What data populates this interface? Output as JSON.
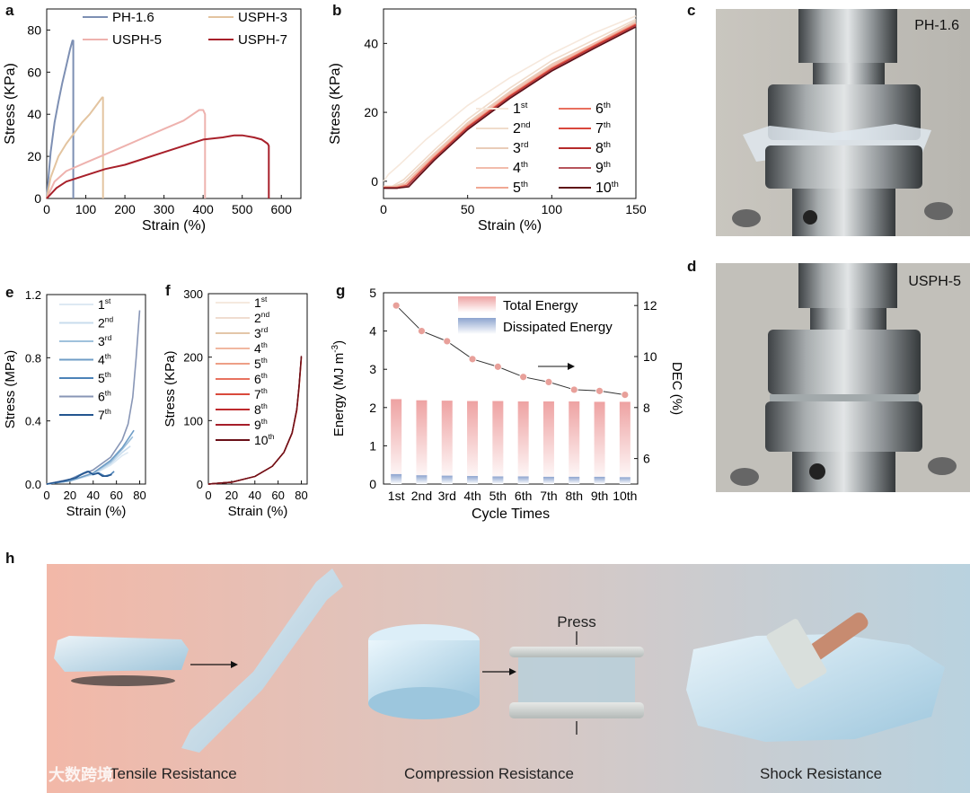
{
  "panels": {
    "a": "a",
    "b": "b",
    "c": "c",
    "d": "d",
    "e": "e",
    "f": "f",
    "g": "g",
    "h": "h"
  },
  "chart_data": [
    {
      "id": "a",
      "type": "line",
      "xlabel": "Strain (%)",
      "ylabel": "Stress (KPa)",
      "xlim": [
        0,
        650
      ],
      "ylim": [
        0,
        90
      ],
      "xticks": [
        0,
        100,
        200,
        300,
        400,
        500,
        600
      ],
      "yticks": [
        0,
        20,
        40,
        60,
        80
      ],
      "legend": "top",
      "series": [
        {
          "name": "PH-1.6",
          "color": "#7d8fb3",
          "x": [
            0,
            10,
            20,
            30,
            40,
            50,
            60,
            66,
            68,
            68
          ],
          "y": [
            0,
            22,
            36,
            46,
            55,
            63,
            71,
            75,
            75,
            0
          ]
        },
        {
          "name": "USPH-3",
          "color": "#e3c4a0",
          "x": [
            0,
            10,
            30,
            50,
            70,
            90,
            110,
            130,
            142,
            144,
            144
          ],
          "y": [
            0,
            10,
            20,
            26,
            31,
            36,
            40,
            45,
            48,
            48,
            0
          ]
        },
        {
          "name": "USPH-5",
          "color": "#eeb2ae",
          "x": [
            0,
            20,
            50,
            100,
            150,
            200,
            250,
            300,
            350,
            390,
            400,
            405,
            405
          ],
          "y": [
            0,
            8,
            13,
            17,
            21,
            25,
            29,
            33,
            37,
            42,
            42,
            40,
            0
          ]
        },
        {
          "name": "USPH-7",
          "color": "#a8202a",
          "x": [
            0,
            25,
            50,
            100,
            150,
            200,
            250,
            300,
            350,
            400,
            450,
            480,
            500,
            530,
            550,
            565,
            568,
            568
          ],
          "y": [
            0,
            5,
            8,
            11,
            14,
            16,
            19,
            22,
            25,
            28,
            29,
            30,
            30,
            29,
            28,
            26,
            25,
            0
          ]
        }
      ]
    },
    {
      "id": "b",
      "type": "line",
      "xlabel": "Strain (%)",
      "ylabel": "Stress (KPa)",
      "xlim": [
        0,
        150
      ],
      "ylim": [
        -5,
        50
      ],
      "xticks": [
        0,
        50,
        100,
        150
      ],
      "yticks": [
        0,
        20,
        40
      ],
      "legend": "lower-right",
      "series": [
        {
          "name": "1",
          "sup": "st",
          "color": "#f6e8dc",
          "x": [
            0,
            3,
            10,
            25,
            50,
            75,
            100,
            125,
            150
          ],
          "y": [
            0,
            2,
            5,
            12,
            22,
            30,
            37,
            43,
            48
          ]
        },
        {
          "name": "2",
          "sup": "nd",
          "color": "#f0dccc",
          "x": [
            0,
            5,
            12,
            30,
            50,
            75,
            100,
            125,
            150
          ],
          "y": [
            -1.5,
            -1.5,
            0.5,
            9,
            18,
            27,
            35,
            41,
            47
          ]
        },
        {
          "name": "3",
          "sup": "rd",
          "color": "#e9ccb8",
          "x": [
            0,
            6,
            12,
            30,
            50,
            75,
            100,
            125,
            150
          ],
          "y": [
            -1.5,
            -1.5,
            -0.5,
            8,
            17,
            26,
            34,
            40,
            46.5
          ]
        },
        {
          "name": "4",
          "sup": "th",
          "color": "#f2bcac",
          "x": [
            0,
            7,
            13,
            30,
            50,
            75,
            100,
            125,
            150
          ],
          "y": [
            -1.7,
            -1.7,
            -0.8,
            7.5,
            16.5,
            25.5,
            33.5,
            40,
            46
          ]
        },
        {
          "name": "5",
          "sup": "th",
          "color": "#f0a894",
          "x": [
            0,
            7,
            13,
            30,
            50,
            75,
            100,
            125,
            150
          ],
          "y": [
            -1.8,
            -1.8,
            -1,
            7,
            16,
            25,
            33,
            39.5,
            45.8
          ]
        },
        {
          "name": "6",
          "sup": "th",
          "color": "#e8705e",
          "x": [
            0,
            8,
            14,
            30,
            50,
            75,
            100,
            125,
            150
          ],
          "y": [
            -1.8,
            -1.8,
            -1.2,
            6.8,
            15.8,
            24.8,
            32.8,
            39.3,
            45.6
          ]
        },
        {
          "name": "7",
          "sup": "th",
          "color": "#d9473c",
          "x": [
            0,
            8,
            14,
            30,
            50,
            75,
            100,
            125,
            150
          ],
          "y": [
            -1.9,
            -1.9,
            -1.3,
            6.6,
            15.6,
            24.6,
            32.6,
            39.1,
            45.4
          ]
        },
        {
          "name": "8",
          "sup": "th",
          "color": "#b52a2a",
          "x": [
            0,
            8,
            14,
            30,
            50,
            75,
            100,
            125,
            150
          ],
          "y": [
            -2,
            -2,
            -1.4,
            6.4,
            15.4,
            24.4,
            32.4,
            38.9,
            45.2
          ]
        },
        {
          "name": "9",
          "sup": "th",
          "color": "#b6545c",
          "x": [
            0,
            8,
            14,
            30,
            50,
            75,
            100,
            125,
            150
          ],
          "y": [
            -2,
            -2,
            -1.5,
            6.2,
            15.2,
            24.2,
            32.2,
            38.7,
            45
          ]
        },
        {
          "name": "10",
          "sup": "th",
          "color": "#5e0f16",
          "x": [
            0,
            8,
            15,
            30,
            50,
            75,
            100,
            125,
            150
          ],
          "y": [
            -2,
            -2,
            -1.6,
            6,
            15,
            24,
            32,
            38.5,
            44.8
          ]
        }
      ]
    },
    {
      "id": "e",
      "type": "line",
      "xlabel": "Strain (%)",
      "ylabel": "Stress (MPa)",
      "xlim": [
        0,
        85
      ],
      "ylim": [
        0,
        1.2
      ],
      "xticks": [
        0,
        20,
        40,
        60,
        80
      ],
      "yticks": [
        0.0,
        0.4,
        0.8,
        1.2
      ],
      "ytick_labels": [
        "0.0",
        "0.4",
        "0.8",
        "1.2"
      ],
      "legend": "top-right",
      "series": [
        {
          "name": "1",
          "sup": "st",
          "color": "#dde9f3",
          "x": [
            0,
            20,
            40,
            55,
            65,
            70
          ],
          "y": [
            0,
            0.02,
            0.06,
            0.12,
            0.18,
            0.2
          ]
        },
        {
          "name": "2",
          "sup": "nd",
          "color": "#c8dced",
          "x": [
            0,
            20,
            40,
            55,
            65,
            72
          ],
          "y": [
            0,
            0.02,
            0.06,
            0.13,
            0.2,
            0.24
          ]
        },
        {
          "name": "3",
          "sup": "rd",
          "color": "#9fc1dc",
          "x": [
            0,
            20,
            40,
            55,
            65,
            74
          ],
          "y": [
            0,
            0.02,
            0.07,
            0.14,
            0.22,
            0.3
          ]
        },
        {
          "name": "4",
          "sup": "th",
          "color": "#6f9dc6",
          "x": [
            0,
            20,
            40,
            55,
            65,
            75
          ],
          "y": [
            0,
            0.02,
            0.07,
            0.15,
            0.23,
            0.34
          ]
        },
        {
          "name": "5",
          "sup": "th",
          "color": "#4c82b8",
          "x": [
            0,
            20,
            35,
            40,
            45,
            50,
            55,
            58
          ],
          "y": [
            0,
            0.03,
            0.08,
            0.06,
            0.07,
            0.05,
            0.06,
            0.08
          ]
        },
        {
          "name": "6",
          "sup": "th",
          "color": "#8896b6",
          "x": [
            0,
            20,
            40,
            55,
            65,
            70,
            74,
            77,
            80
          ],
          "y": [
            0,
            0.03,
            0.09,
            0.17,
            0.28,
            0.38,
            0.55,
            0.8,
            1.1
          ]
        },
        {
          "name": "7",
          "sup": "th",
          "color": "#23558f",
          "x": [
            0,
            15,
            25,
            32,
            36,
            40,
            44,
            48,
            52,
            56
          ],
          "y": [
            0,
            0.02,
            0.04,
            0.07,
            0.08,
            0.06,
            0.07,
            0.05,
            0.05,
            0.06
          ]
        }
      ]
    },
    {
      "id": "f",
      "type": "line",
      "xlabel": "Strain (%)",
      "ylabel": "Stress (KPa)",
      "xlim": [
        0,
        85
      ],
      "ylim": [
        0,
        300
      ],
      "xticks": [
        0,
        20,
        40,
        60,
        80
      ],
      "yticks": [
        0,
        100,
        200,
        300
      ],
      "legend": "top-right",
      "series": [
        {
          "name": "1",
          "sup": "st",
          "color": "#f5e9df",
          "x": [
            0,
            20,
            40,
            55,
            65,
            72,
            76,
            78,
            80
          ],
          "y": [
            0,
            3,
            12,
            28,
            50,
            80,
            115,
            150,
            195
          ]
        },
        {
          "name": "2",
          "sup": "nd",
          "color": "#f0ddd0",
          "x": [
            0,
            20,
            40,
            55,
            65,
            72,
            76,
            78,
            80
          ],
          "y": [
            0,
            3,
            12,
            28,
            50,
            80,
            115,
            150,
            196
          ]
        },
        {
          "name": "3",
          "sup": "rd",
          "color": "#e3c6a8",
          "x": [
            0,
            20,
            40,
            55,
            65,
            72,
            76,
            78,
            80
          ],
          "y": [
            0,
            3,
            12,
            28,
            50,
            80,
            115,
            150,
            197
          ]
        },
        {
          "name": "4",
          "sup": "th",
          "color": "#f1b7a0",
          "x": [
            0,
            20,
            40,
            55,
            65,
            72,
            76,
            78,
            80
          ],
          "y": [
            0,
            3,
            12,
            28,
            50,
            80,
            115,
            150,
            198
          ]
        },
        {
          "name": "5",
          "sup": "th",
          "color": "#ee9f86",
          "x": [
            0,
            20,
            40,
            55,
            65,
            72,
            76,
            78,
            80
          ],
          "y": [
            0,
            3,
            12,
            28,
            50,
            80,
            115,
            150,
            198
          ]
        },
        {
          "name": "6",
          "sup": "th",
          "color": "#e8725f",
          "x": [
            0,
            20,
            40,
            55,
            65,
            72,
            76,
            78,
            80
          ],
          "y": [
            0,
            3,
            12,
            28,
            50,
            80,
            116,
            151,
            199
          ]
        },
        {
          "name": "7",
          "sup": "th",
          "color": "#d94a3c",
          "x": [
            0,
            20,
            40,
            55,
            65,
            72,
            76,
            78,
            80
          ],
          "y": [
            0,
            3,
            12,
            28,
            50,
            80,
            116,
            152,
            200
          ]
        },
        {
          "name": "8",
          "sup": "th",
          "color": "#be2a2e",
          "x": [
            0,
            20,
            40,
            55,
            65,
            72,
            76,
            78,
            80
          ],
          "y": [
            0,
            3,
            12,
            28,
            50,
            80,
            117,
            153,
            200
          ]
        },
        {
          "name": "9",
          "sup": "th",
          "color": "#a61e2a",
          "x": [
            0,
            20,
            40,
            55,
            65,
            72,
            76,
            78,
            80
          ],
          "y": [
            0,
            3,
            12,
            28,
            50,
            80,
            117,
            153,
            201
          ]
        },
        {
          "name": "10",
          "sup": "th",
          "color": "#6a1018",
          "x": [
            0,
            20,
            40,
            55,
            65,
            72,
            76,
            78,
            80
          ],
          "y": [
            0,
            3,
            12,
            28,
            50,
            81,
            118,
            154,
            202
          ]
        }
      ]
    },
    {
      "id": "g",
      "type": "bar",
      "xlabel": "Cycle Times",
      "ylabel": "Energy (MJ m",
      "ylabel_sup": "-3",
      "ylabel_tail": ")",
      "ylabel_right": "DEC (%)",
      "ylim": [
        0,
        5
      ],
      "yticks": [
        0,
        1,
        2,
        3,
        4,
        5
      ],
      "ylim_right": [
        5,
        12.5
      ],
      "yticks_right": [
        6,
        8,
        10,
        12
      ],
      "legend": "top",
      "categories": [
        "1st",
        "2nd",
        "3rd",
        "4th",
        "5th",
        "6th",
        "7th",
        "8th",
        "9th",
        "10th"
      ],
      "series": [
        {
          "name": "Total Energy",
          "color": "#eea2a2",
          "values": [
            2.22,
            2.19,
            2.18,
            2.17,
            2.17,
            2.16,
            2.16,
            2.16,
            2.15,
            2.15
          ]
        },
        {
          "name": "Dissipated Energy",
          "color": "#8da4cf",
          "values": [
            0.26,
            0.23,
            0.22,
            0.21,
            0.2,
            0.2,
            0.19,
            0.19,
            0.19,
            0.18
          ]
        },
        {
          "name": "DEC",
          "color": "#e8a09a",
          "values": [
            12.0,
            11.0,
            10.6,
            9.9,
            9.6,
            9.2,
            9.0,
            8.7,
            8.65,
            8.5
          ]
        }
      ]
    }
  ],
  "photos": {
    "c": {
      "label": "PH-1.6"
    },
    "d": {
      "label": "USPH-5"
    }
  },
  "banner": {
    "press": "Press",
    "captions": [
      "Tensile Resistance",
      "Compression Resistance",
      "Shock Resistance"
    ],
    "watermark": "大数跨境"
  },
  "colors": {
    "axis": "#111111",
    "banner_left": "#f2b7a7",
    "banner_right": "#bcd4e2"
  }
}
